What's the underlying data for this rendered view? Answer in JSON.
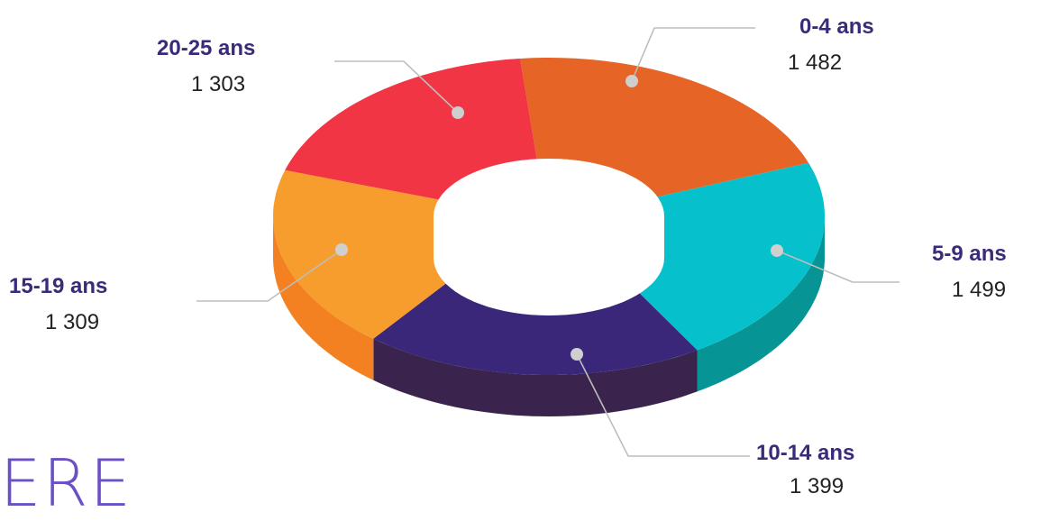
{
  "chart_data": {
    "type": "pie",
    "style": "3d-donut",
    "categories": [
      "0-4 ans",
      "5-9 ans",
      "10-14 ans",
      "15-19 ans",
      "20-25 ans"
    ],
    "values": [
      1482,
      1499,
      1399,
      1309,
      1303
    ],
    "value_labels": [
      "1 482",
      "1 499",
      "1 399",
      "1 309",
      "1 303"
    ],
    "colors": [
      "#e56426",
      "#06c1cc",
      "#3a2779",
      "#f79d2d",
      "#f23544"
    ],
    "side_colors": [
      "#c4601f",
      "#079495",
      "#3a244e",
      "#f38122",
      "#ac1a16"
    ]
  },
  "label_color": "#3b2a7a",
  "value_color": "#222222",
  "page_text": "ERE"
}
